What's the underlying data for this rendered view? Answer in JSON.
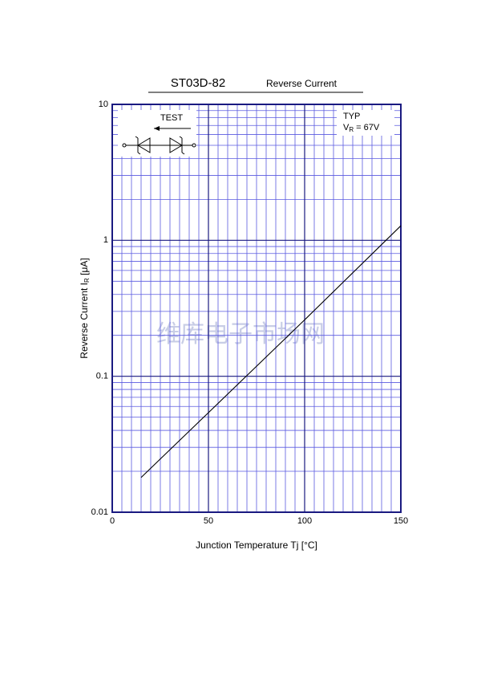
{
  "chart_data": {
    "type": "line",
    "title": "ST03D-82",
    "subtitle": "Reverse Current",
    "xlabel": {
      "main": "Junction Temperature  Tj  [°C]"
    },
    "ylabel": {
      "main": "Reverse Current  I",
      "sub": "R",
      "tail": "  [μA]"
    },
    "annotations": {
      "typ": "TYP",
      "vr_main": "V",
      "vr_sub": "R",
      "vr_tail": " = 67V",
      "test": "TEST"
    },
    "watermark": "维库电子市场网",
    "x": [
      15,
      50,
      100,
      150
    ],
    "series": [
      {
        "name": "IR",
        "color": "#000000",
        "values": [
          0.018,
          0.054,
          0.26,
          1.28
        ]
      }
    ],
    "xlim": [
      0,
      150
    ],
    "xticks": [
      0,
      50,
      100,
      150
    ],
    "ylim": [
      0.01,
      10
    ],
    "yticks": [
      0.01,
      0.1,
      1,
      10
    ],
    "ylog": true,
    "grid": true
  }
}
